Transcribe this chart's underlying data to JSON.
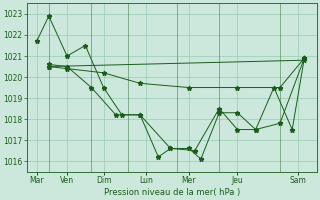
{
  "bg_color": "#cce8dc",
  "line_color": "#1a5c1a",
  "grid_color": "#99ccb3",
  "xlabel": "Pression niveau de la mer( hPa )",
  "ylim": [
    1015.5,
    1023.5
  ],
  "yticks": [
    1016,
    1017,
    1018,
    1019,
    1020,
    1021,
    1022,
    1023
  ],
  "xlim": [
    -0.3,
    23.5
  ],
  "tick_labels": [
    "Mar",
    "Ven",
    "Dim",
    "Lun",
    "Mer",
    "Jeu",
    "Sam"
  ],
  "tick_positions": [
    0.5,
    3,
    6,
    9.5,
    13,
    17,
    22
  ],
  "vlines": [
    1.5,
    5.0,
    8.0,
    12.0,
    15.5,
    20.5
  ],
  "series": [
    {
      "x": [
        0.5,
        1.5,
        3.0,
        4.5,
        6.0,
        7.5,
        9.0,
        10.5,
        11.5,
        13.0,
        14.0,
        15.5,
        17.0,
        18.5,
        20.0,
        21.5,
        22.5
      ],
      "y": [
        1021.7,
        1022.9,
        1021.0,
        1021.5,
        1019.5,
        1018.2,
        1018.2,
        1016.2,
        1016.6,
        1016.6,
        1016.1,
        1018.3,
        1018.3,
        1017.5,
        1019.5,
        1017.5,
        1020.9
      ]
    },
    {
      "x": [
        1.5,
        22.5
      ],
      "y": [
        1020.5,
        1020.8
      ]
    },
    {
      "x": [
        1.5,
        3.0,
        6.0,
        9.0,
        13.0,
        17.0,
        20.5,
        22.5
      ],
      "y": [
        1020.5,
        1020.4,
        1020.2,
        1019.7,
        1019.5,
        1019.5,
        1019.5,
        1020.9
      ]
    },
    {
      "x": [
        1.5,
        3.0,
        5.0,
        7.0,
        9.0,
        11.5,
        13.5,
        15.5,
        17.0,
        18.5,
        20.5,
        22.5
      ],
      "y": [
        1020.6,
        1020.5,
        1019.5,
        1018.2,
        1018.2,
        1016.6,
        1016.5,
        1018.5,
        1017.5,
        1017.5,
        1017.8,
        1020.9
      ]
    }
  ]
}
